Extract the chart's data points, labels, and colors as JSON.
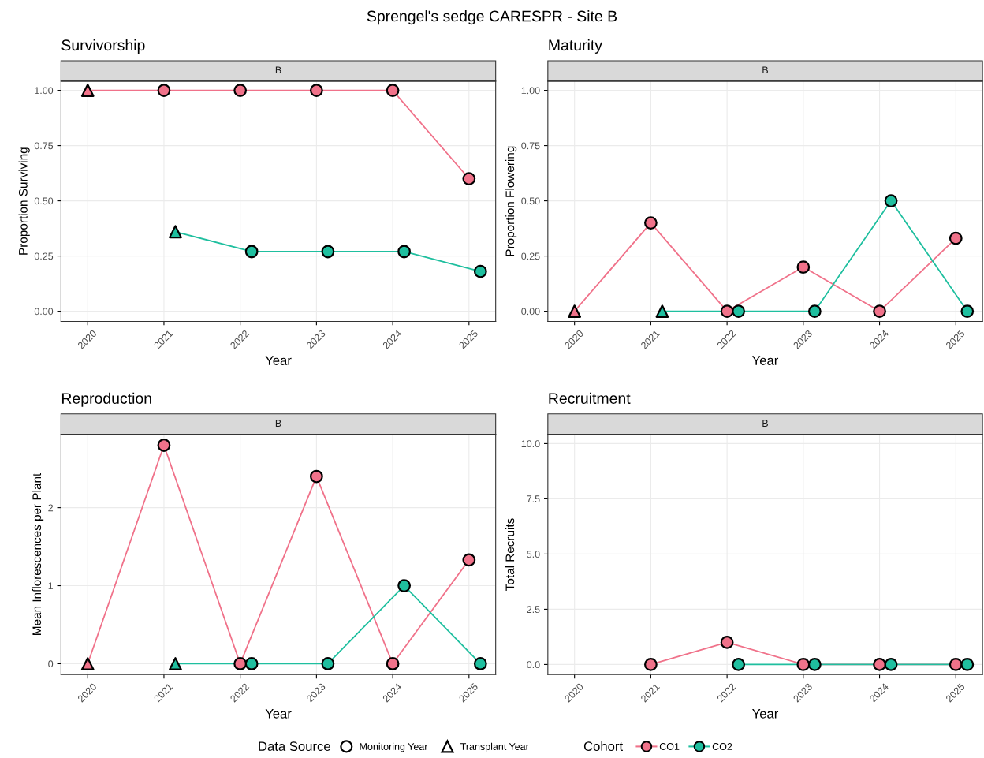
{
  "chart_data": [
    {
      "type": "line",
      "title": "Survivorship",
      "subtitle": "B",
      "xlabel": "Year",
      "ylabel": "Proportion Surviving",
      "annotations": [
        "Sprengel's sedge CARESPR - Site B"
      ],
      "categories": [
        "2020",
        "2021",
        "2022",
        "2023",
        "2024",
        "2025"
      ],
      "ylim": [
        -0.046,
        1.042
      ],
      "yticks": [
        {
          "value": 0,
          "label": "0.00"
        },
        {
          "value": 0.25,
          "label": "0.25"
        },
        {
          "value": 0.5,
          "label": "0.50"
        },
        {
          "value": 0.75,
          "label": "0.75"
        },
        {
          "value": 1,
          "label": "1.00"
        }
      ],
      "grid": true,
      "series": [
        {
          "color": "#f0728a",
          "values": [
            1,
            1,
            1,
            1,
            1,
            0.6
          ]
        },
        {
          "color": "#1fbf9f",
          "values": [
            null,
            0.36,
            0.27,
            0.27,
            0.27,
            0.18
          ]
        },
        {
          "type": "scatter",
          "marker": "circle",
          "color": "#f0728a",
          "values": [
            null,
            1,
            1,
            1,
            1,
            0.6
          ]
        },
        {
          "type": "scatter",
          "marker": "circle",
          "color": "#1fbf9f",
          "values": [
            null,
            null,
            0.27,
            0.27,
            0.27,
            0.18
          ]
        },
        {
          "type": "scatter",
          "marker": "triangle",
          "color": "#f0728a",
          "values": [
            1,
            null,
            null,
            null,
            null,
            null
          ]
        },
        {
          "type": "scatter",
          "marker": "triangle",
          "color": "#1fbf9f",
          "values": [
            null,
            0.36,
            null,
            null,
            null,
            null
          ]
        }
      ]
    },
    {
      "type": "line",
      "title": "Maturity",
      "subtitle": "B",
      "xlabel": "Year",
      "ylabel": "Proportion Flowering",
      "categories": [
        "2020",
        "2021",
        "2022",
        "2023",
        "2024",
        "2025"
      ],
      "ylim": [
        -0.046,
        1.042
      ],
      "yticks": [
        {
          "value": 0,
          "label": "0.00"
        },
        {
          "value": 0.25,
          "label": "0.25"
        },
        {
          "value": 0.5,
          "label": "0.50"
        },
        {
          "value": 0.75,
          "label": "0.75"
        },
        {
          "value": 1,
          "label": "1.00"
        }
      ],
      "grid": true,
      "series": [
        {
          "color": "#f0728a",
          "values": [
            0,
            0.4,
            0,
            0.2,
            0,
            0.33
          ]
        },
        {
          "color": "#1fbf9f",
          "values": [
            null,
            0,
            0,
            0,
            0.5,
            0
          ]
        },
        {
          "type": "scatter",
          "marker": "circle",
          "color": "#f0728a",
          "values": [
            null,
            0.4,
            0,
            0.2,
            0,
            0.33
          ]
        },
        {
          "type": "scatter",
          "marker": "circle",
          "color": "#1fbf9f",
          "values": [
            null,
            null,
            0,
            0,
            0.5,
            0
          ]
        },
        {
          "type": "scatter",
          "marker": "triangle",
          "color": "#f0728a",
          "values": [
            0,
            null,
            null,
            null,
            null,
            null
          ]
        },
        {
          "type": "scatter",
          "marker": "triangle",
          "color": "#1fbf9f",
          "values": [
            null,
            0,
            null,
            null,
            null,
            null
          ]
        }
      ]
    },
    {
      "type": "line",
      "title": "Reproduction",
      "subtitle": "B",
      "xlabel": "Year",
      "ylabel": "Mean Inflorescences per Plant",
      "categories": [
        "2020",
        "2021",
        "2022",
        "2023",
        "2024",
        "2025"
      ],
      "ylim": [
        -0.14,
        2.94
      ],
      "yticks": [
        0,
        1,
        2
      ],
      "grid": true,
      "series": [
        {
          "color": "#f0728a",
          "values": [
            0,
            2.8,
            0,
            2.4,
            0,
            1.33
          ]
        },
        {
          "color": "#1fbf9f",
          "values": [
            null,
            0,
            0,
            0,
            1,
            0
          ]
        },
        {
          "type": "scatter",
          "marker": "circle",
          "color": "#f0728a",
          "values": [
            null,
            2.8,
            0,
            2.4,
            0,
            1.33
          ]
        },
        {
          "type": "scatter",
          "marker": "circle",
          "color": "#1fbf9f",
          "values": [
            null,
            null,
            0,
            0,
            1,
            0
          ]
        },
        {
          "type": "scatter",
          "marker": "triangle",
          "color": "#f0728a",
          "values": [
            0,
            null,
            null,
            null,
            null,
            null
          ]
        },
        {
          "type": "scatter",
          "marker": "triangle",
          "color": "#1fbf9f",
          "values": [
            null,
            0,
            null,
            null,
            null,
            null
          ]
        }
      ]
    },
    {
      "type": "line",
      "title": "Recruitment",
      "subtitle": "B",
      "xlabel": "Year",
      "ylabel": "Total Recruits",
      "categories": [
        "2020",
        "2021",
        "2022",
        "2023",
        "2024",
        "2025"
      ],
      "ylim": [
        -0.46,
        10.42
      ],
      "yticks": [
        {
          "value": 0,
          "label": "0.0"
        },
        {
          "value": 2.5,
          "label": "2.5"
        },
        {
          "value": 5,
          "label": "5.0"
        },
        {
          "value": 7.5,
          "label": "7.5"
        },
        {
          "value": 10,
          "label": "10.0"
        }
      ],
      "grid": true,
      "legend": "bottom",
      "legend_title": "Cohort",
      "annotations": [
        "Data Source"
      ],
      "series": [
        {
          "name": "CO1",
          "color": "#f0728a",
          "values": [
            null,
            0,
            1,
            0,
            0,
            0
          ]
        },
        {
          "name": "CO2",
          "color": "#1fbf9f",
          "values": [
            null,
            null,
            0,
            0,
            0,
            0
          ]
        },
        {
          "type": "scatter",
          "marker": "circle",
          "color": "#f0728a",
          "values": [
            null,
            0,
            1,
            0,
            0,
            0
          ]
        },
        {
          "name": "Monitoring Year",
          "type": "scatter",
          "marker": "circle",
          "color": "#ffffff",
          "values": [
            null,
            null,
            null,
            null,
            null,
            null
          ]
        },
        {
          "type": "scatter",
          "marker": "circle",
          "color": "#1fbf9f",
          "values": [
            null,
            null,
            0,
            0,
            0,
            0
          ]
        },
        {
          "name": "Transplant Year",
          "type": "scatter",
          "marker": "triangle",
          "color": "#ffffff",
          "values": [
            null,
            null,
            null,
            null,
            null,
            null
          ]
        }
      ]
    }
  ]
}
